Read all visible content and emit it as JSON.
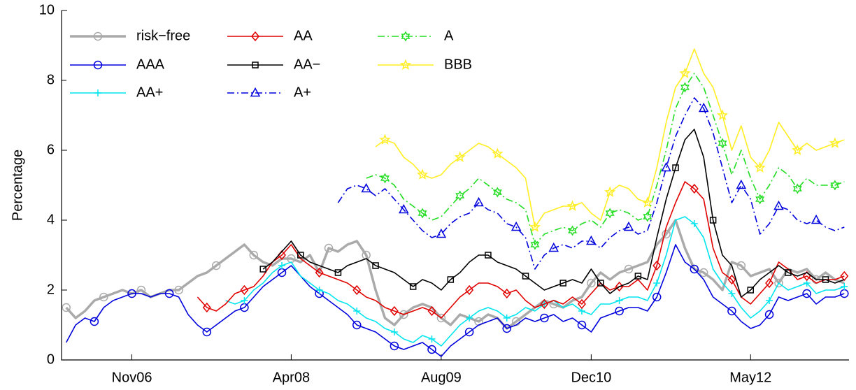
{
  "chart_data": {
    "type": "line",
    "y_label": "Percentage",
    "x": [
      "Apr06",
      "May06",
      "Jun06",
      "Jul06",
      "Aug06",
      "Sep06",
      "Oct06",
      "Nov06",
      "Dec06",
      "Jan07",
      "Feb07",
      "Mar07",
      "Apr07",
      "May07",
      "Jun07",
      "Jul07",
      "Aug07",
      "Sep07",
      "Oct07",
      "Nov07",
      "Dec07",
      "Jan08",
      "Feb08",
      "Mar08",
      "Apr08",
      "May08",
      "Jun08",
      "Jul08",
      "Aug08",
      "Sep08",
      "Oct08",
      "Nov08",
      "Dec08",
      "Jan09",
      "Feb09",
      "Mar09",
      "Apr09",
      "May09",
      "Jun09",
      "Jul09",
      "Aug09",
      "Sep09",
      "Oct09",
      "Nov09",
      "Dec09",
      "Jan10",
      "Feb10",
      "Mar10",
      "Apr10",
      "May10",
      "Jun10",
      "Jul10",
      "Aug10",
      "Sep10",
      "Oct10",
      "Nov10",
      "Dec10",
      "Jan11",
      "Feb11",
      "Mar11",
      "Apr11",
      "May11",
      "Jun11",
      "Jul11",
      "Aug11",
      "Sep11",
      "Oct11",
      "Nov11",
      "Dec11",
      "Jan12",
      "Feb12",
      "Mar12",
      "Apr12",
      "May12",
      "Jun12",
      "Jul12",
      "Aug12",
      "Sep12",
      "Oct12",
      "Nov12",
      "Dec12",
      "Jan13",
      "Feb13",
      "Mar13"
    ],
    "xticks": [
      "Nov06",
      "Apr08",
      "Aug09",
      "Dec10",
      "May12"
    ],
    "ylim": [
      0,
      10
    ],
    "yticks": [
      0,
      2,
      4,
      6,
      8,
      10
    ],
    "grid": false,
    "legend": "upper left",
    "series": [
      {
        "name": "risk−free",
        "color": "#aaaaaa",
        "width": 3.5,
        "marker": "circle",
        "dash": "solid",
        "values": [
          1.5,
          1.2,
          1.4,
          1.7,
          1.8,
          1.9,
          2.0,
          1.9,
          2.0,
          1.8,
          1.9,
          2.0,
          2.0,
          2.2,
          2.4,
          2.5,
          2.7,
          2.9,
          3.1,
          3.3,
          3.0,
          2.8,
          2.7,
          2.9,
          2.9,
          2.8,
          3.0,
          2.5,
          3.2,
          3.1,
          3.3,
          3.4,
          3.0,
          2.0,
          1.2,
          1.0,
          1.3,
          1.5,
          1.6,
          1.5,
          1.2,
          1.0,
          1.3,
          1.2,
          1.1,
          1.3,
          1.2,
          0.9,
          1.1,
          1.3,
          1.5,
          1.7,
          1.6,
          1.5,
          1.7,
          1.8,
          2.2,
          2.5,
          2.3,
          2.5,
          2.6,
          2.7,
          2.8,
          3.3,
          3.6,
          4.0,
          3.2,
          2.6,
          2.5,
          2.3,
          2.0,
          2.8,
          2.7,
          2.4,
          2.5,
          2.6,
          2.2,
          2.6,
          2.5,
          2.6,
          2.3,
          2.5,
          2.3,
          2.2
        ]
      },
      {
        "name": "AAA",
        "color": "#0000dd",
        "width": 1.6,
        "marker": "circle",
        "dash": "solid",
        "values": [
          0.5,
          1.0,
          1.2,
          1.1,
          1.5,
          1.7,
          1.8,
          1.9,
          1.9,
          1.8,
          1.9,
          1.9,
          1.8,
          1.3,
          1.0,
          0.8,
          1.0,
          1.2,
          1.4,
          1.5,
          1.8,
          2.1,
          2.3,
          2.5,
          2.7,
          2.4,
          2.1,
          1.9,
          1.7,
          1.5,
          1.3,
          1.0,
          0.9,
          0.8,
          0.6,
          0.4,
          0.3,
          0.4,
          0.5,
          0.3,
          0.1,
          0.4,
          0.6,
          0.8,
          1.0,
          1.1,
          1.2,
          0.9,
          1.0,
          1.2,
          1.1,
          1.2,
          1.3,
          1.1,
          1.2,
          1.0,
          0.8,
          1.2,
          1.3,
          1.4,
          1.5,
          1.5,
          1.4,
          1.8,
          2.5,
          3.3,
          2.8,
          2.6,
          2.3,
          1.8,
          1.6,
          1.4,
          1.1,
          0.9,
          1.0,
          1.3,
          1.8,
          1.7,
          1.8,
          1.9,
          1.6,
          1.8,
          1.8,
          1.9
        ]
      },
      {
        "name": "AA+",
        "color": "#00e5ee",
        "width": 1.6,
        "marker": "plus",
        "dash": "solid",
        "values": [
          null,
          null,
          null,
          null,
          null,
          null,
          null,
          null,
          null,
          null,
          null,
          null,
          null,
          null,
          null,
          null,
          null,
          1.7,
          1.6,
          1.7,
          2.0,
          2.2,
          2.5,
          2.7,
          2.8,
          2.4,
          2.2,
          2.0,
          1.9,
          1.7,
          1.6,
          1.4,
          1.2,
          1.1,
          0.9,
          0.8,
          0.6,
          0.5,
          0.7,
          0.6,
          0.4,
          0.7,
          1.0,
          1.2,
          1.4,
          1.5,
          1.4,
          1.2,
          1.3,
          1.5,
          1.4,
          1.6,
          1.7,
          1.5,
          1.6,
          1.4,
          1.3,
          1.6,
          1.6,
          1.7,
          1.8,
          1.8,
          1.7,
          2.2,
          3.0,
          4.0,
          4.1,
          3.9,
          3.5,
          2.6,
          2.2,
          1.9,
          1.5,
          1.2,
          1.4,
          1.7,
          2.2,
          2.0,
          2.1,
          2.2,
          1.9,
          2.0,
          2.0,
          2.1
        ]
      },
      {
        "name": "AA",
        "color": "#e00000",
        "width": 1.6,
        "marker": "diamond",
        "dash": "solid",
        "values": [
          null,
          null,
          null,
          null,
          null,
          null,
          null,
          null,
          null,
          null,
          null,
          null,
          null,
          null,
          1.8,
          1.5,
          1.4,
          1.6,
          1.9,
          2.0,
          2.1,
          2.4,
          2.8,
          3.0,
          3.3,
          2.9,
          2.7,
          2.5,
          2.4,
          2.3,
          2.2,
          2.0,
          1.8,
          1.7,
          1.5,
          1.4,
          1.3,
          1.4,
          1.5,
          1.4,
          1.2,
          1.5,
          1.8,
          2.0,
          2.2,
          2.2,
          2.1,
          1.9,
          2.0,
          1.7,
          1.5,
          1.6,
          1.7,
          1.6,
          1.8,
          1.6,
          1.9,
          2.2,
          2.0,
          2.1,
          2.1,
          2.3,
          2.0,
          2.7,
          3.8,
          4.5,
          5.1,
          4.9,
          4.6,
          3.2,
          2.5,
          2.3,
          1.8,
          1.6,
          1.9,
          2.2,
          2.8,
          2.6,
          2.3,
          2.4,
          2.2,
          2.3,
          2.3,
          2.4
        ]
      },
      {
        "name": "AA−",
        "color": "#000000",
        "width": 1.6,
        "marker": "square",
        "dash": "solid",
        "values": [
          null,
          null,
          null,
          null,
          null,
          null,
          null,
          null,
          null,
          null,
          null,
          null,
          null,
          null,
          null,
          null,
          null,
          null,
          null,
          null,
          null,
          2.6,
          2.8,
          3.1,
          3.4,
          3.0,
          2.8,
          2.7,
          2.6,
          2.5,
          2.7,
          2.8,
          2.9,
          2.7,
          2.6,
          2.5,
          2.3,
          2.1,
          2.3,
          2.2,
          2.0,
          2.3,
          2.5,
          2.8,
          3.0,
          3.0,
          2.8,
          2.7,
          2.6,
          2.4,
          2.2,
          2.0,
          2.1,
          2.2,
          2.3,
          2.2,
          2.6,
          2.2,
          1.9,
          2.1,
          2.2,
          2.4,
          2.3,
          3.5,
          4.6,
          5.5,
          6.3,
          6.6,
          5.8,
          4.0,
          3.0,
          2.7,
          1.8,
          2.0,
          2.3,
          2.5,
          2.7,
          2.5,
          2.4,
          2.5,
          2.3,
          2.3,
          2.2,
          2.3
        ]
      },
      {
        "name": "A+",
        "color": "#0000dd",
        "width": 1.6,
        "marker": "triangle",
        "dash": "dashdot",
        "values": [
          null,
          null,
          null,
          null,
          null,
          null,
          null,
          null,
          null,
          null,
          null,
          null,
          null,
          null,
          null,
          null,
          null,
          null,
          null,
          null,
          null,
          null,
          null,
          null,
          null,
          null,
          null,
          null,
          null,
          4.5,
          4.9,
          5.0,
          4.9,
          4.7,
          4.9,
          4.6,
          4.3,
          4.0,
          3.7,
          3.5,
          3.6,
          3.9,
          4.1,
          4.2,
          4.5,
          4.3,
          4.2,
          3.9,
          3.8,
          3.5,
          2.6,
          3.0,
          3.2,
          3.3,
          3.2,
          3.4,
          3.4,
          3.2,
          3.5,
          3.7,
          3.8,
          3.6,
          3.7,
          4.5,
          5.5,
          6.4,
          7.0,
          7.5,
          7.2,
          6.5,
          5.5,
          4.5,
          5.0,
          4.6,
          3.6,
          3.9,
          4.4,
          4.3,
          4.0,
          3.9,
          4.0,
          3.8,
          3.7,
          3.8
        ]
      },
      {
        "name": "A",
        "color": "#22dd22",
        "width": 1.6,
        "marker": "hexagram",
        "dash": "dashdot",
        "values": [
          null,
          null,
          null,
          null,
          null,
          null,
          null,
          null,
          null,
          null,
          null,
          null,
          null,
          null,
          null,
          null,
          null,
          null,
          null,
          null,
          null,
          null,
          null,
          null,
          null,
          null,
          null,
          null,
          null,
          null,
          null,
          null,
          5.2,
          5.3,
          5.2,
          5.0,
          4.6,
          4.4,
          4.2,
          4.0,
          4.1,
          4.4,
          4.7,
          4.9,
          5.2,
          5.0,
          4.8,
          4.6,
          4.5,
          4.3,
          3.3,
          3.6,
          3.7,
          3.8,
          3.7,
          3.9,
          4.0,
          3.8,
          4.2,
          4.3,
          4.2,
          4.0,
          4.1,
          5.0,
          6.0,
          7.2,
          7.8,
          8.2,
          7.8,
          7.0,
          6.2,
          5.3,
          6.0,
          5.2,
          4.6,
          5.0,
          5.5,
          5.3,
          4.9,
          5.2,
          5.0,
          5.0,
          5.0,
          5.1
        ]
      },
      {
        "name": "BBB",
        "color": "#ffee22",
        "width": 1.6,
        "marker": "star",
        "dash": "solid",
        "values": [
          null,
          null,
          null,
          null,
          null,
          null,
          null,
          null,
          null,
          null,
          null,
          null,
          null,
          null,
          null,
          null,
          null,
          null,
          null,
          null,
          null,
          null,
          null,
          null,
          null,
          null,
          null,
          null,
          null,
          null,
          null,
          null,
          null,
          6.1,
          6.3,
          6.2,
          5.8,
          5.6,
          5.3,
          5.2,
          5.3,
          5.6,
          5.8,
          6.0,
          6.2,
          6.1,
          5.9,
          5.7,
          5.5,
          5.2,
          3.8,
          4.2,
          4.3,
          4.4,
          4.4,
          4.5,
          4.2,
          4.0,
          4.8,
          5.0,
          4.9,
          4.6,
          4.5,
          5.5,
          6.8,
          7.8,
          8.2,
          8.9,
          8.2,
          7.8,
          7.0,
          6.0,
          6.7,
          5.8,
          5.5,
          6.0,
          6.8,
          6.4,
          6.0,
          6.2,
          6.0,
          6.1,
          6.2,
          6.3
        ]
      }
    ]
  }
}
